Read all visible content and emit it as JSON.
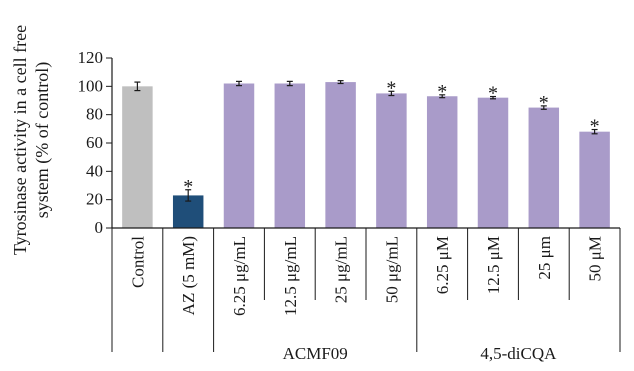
{
  "chart_data": {
    "type": "bar",
    "ylabel": "Tyrosinase activity in a cell free system (% of control)",
    "ylabel_lines": [
      "Tyrosinase activity in a cell free",
      "system (% of control)"
    ],
    "ylim": [
      0,
      120
    ],
    "yticks": [
      0,
      20,
      40,
      60,
      80,
      100,
      120
    ],
    "grid": false,
    "legend": "none",
    "categories": [
      "Control",
      "AZ (5 mM)",
      "6.25 μg/mL",
      "12.5 μg/mL",
      "25 μg/mL",
      "50 μg/mL",
      "6.25 μM",
      "12.5 μM",
      "25 μm",
      "50 μM"
    ],
    "values": [
      100,
      23,
      102,
      102,
      103,
      95,
      93,
      92,
      85,
      68
    ],
    "errors": [
      3,
      4,
      1.5,
      1.5,
      1,
      1.5,
      1,
      0.8,
      1.2,
      1.5
    ],
    "significant": [
      false,
      true,
      false,
      false,
      false,
      true,
      true,
      true,
      true,
      true
    ],
    "significance_marker": "*",
    "colors": [
      "#bfbfbf",
      "#1f4e79",
      "#a99bc9",
      "#a99bc9",
      "#a99bc9",
      "#a99bc9",
      "#a99bc9",
      "#a99bc9",
      "#a99bc9",
      "#a99bc9"
    ],
    "groups": [
      {
        "label": "ACMF09",
        "start": 2,
        "end": 5
      },
      {
        "label": "4,5-diCQA",
        "start": 6,
        "end": 9
      }
    ]
  }
}
